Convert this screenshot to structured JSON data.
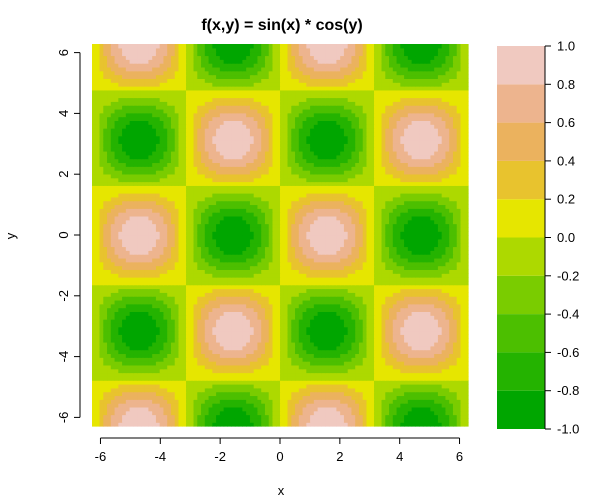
{
  "chart_data": {
    "type": "heatmap",
    "title": "f(x,y) = sin(x) * cos(y)",
    "function": "sin(x) * cos(y)",
    "xlabel": "x",
    "ylabel": "y",
    "xlim": [
      -6.283,
      6.283
    ],
    "ylim": [
      -6.283,
      6.283
    ],
    "grid_resolution": 100,
    "xticks": [
      -6,
      -4,
      -2,
      0,
      2,
      4,
      6
    ],
    "yticks": [
      -6,
      -4,
      -2,
      0,
      2,
      4,
      6
    ],
    "xtick_labels": [
      "-6",
      "-4",
      "-2",
      "0",
      "2",
      "4",
      "6"
    ],
    "ytick_labels": [
      "-6",
      "-4",
      "-2",
      "0",
      "2",
      "4",
      "6"
    ],
    "legend_position": "right",
    "levels": [
      -1.0,
      -0.8,
      -0.6,
      -0.4,
      -0.2,
      0.0,
      0.2,
      0.4,
      0.6,
      0.8,
      1.0
    ],
    "level_labels": [
      "-1.0",
      "-0.8",
      "-0.6",
      "-0.4",
      "-0.2",
      "0.0",
      "0.2",
      "0.4",
      "0.6",
      "0.8",
      "1.0"
    ],
    "colors": [
      "#00A600",
      "#24B300",
      "#4CBF00",
      "#7ACC00",
      "#ADD900",
      "#E6E600",
      "#E8C32E",
      "#EBB25E",
      "#EDB48E",
      "#F0C9C0",
      "#F2F2F2"
    ],
    "grid": false
  }
}
